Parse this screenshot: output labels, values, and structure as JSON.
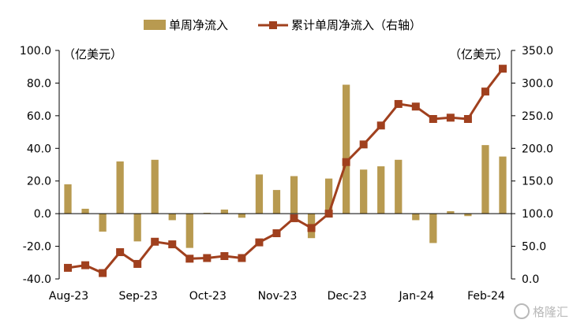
{
  "chart_data": {
    "type": "bar+line",
    "legend": {
      "position": "top",
      "items": [
        {
          "label": "单周净流入",
          "kind": "bar",
          "color": "#B89A50"
        },
        {
          "label": "累计单周净流入（右轴）",
          "kind": "line",
          "color": "#A0401E"
        }
      ]
    },
    "left_axis": {
      "unit_label": "（亿美元）",
      "ylim": [
        -40,
        100
      ],
      "ticks": [
        "100.0",
        "80.0",
        "60.0",
        "40.0",
        "20.0",
        "0.0",
        "-20.0",
        "-40.0"
      ]
    },
    "right_axis": {
      "unit_label": "（亿美元）",
      "ylim": [
        0,
        350
      ],
      "ticks": [
        "350.0",
        "300.0",
        "250.0",
        "200.0",
        "150.0",
        "100.0",
        "50.0",
        "0.0"
      ]
    },
    "x_month_labels": [
      "Aug-23",
      "Sep-23",
      "Oct-23",
      "Nov-23",
      "Dec-23",
      "Jan-24",
      "Feb-24"
    ],
    "x_month_label_index": [
      0,
      4,
      8,
      12,
      16,
      20,
      24
    ],
    "bars": {
      "name": "单周净流入",
      "values": [
        18,
        3,
        -11,
        32,
        -17,
        33,
        -4,
        -21,
        0.5,
        2.5,
        -2.5,
        24,
        14.5,
        23,
        -15,
        21.5,
        79,
        27,
        29,
        33,
        -4,
        -18,
        1.5,
        -1.5,
        42,
        35
      ]
    },
    "line": {
      "name": "累计单周净流入（右轴）",
      "values": [
        17,
        21,
        9,
        41,
        23,
        57,
        53,
        31,
        32,
        35,
        32,
        56,
        70,
        93,
        78,
        100,
        179,
        206,
        235,
        268,
        264,
        245,
        247,
        245,
        287,
        322
      ]
    },
    "colors": {
      "bar": "#B89A50",
      "line": "#A0401E",
      "axis": "#000000",
      "text": "#000000"
    }
  },
  "watermark": "格隆汇"
}
